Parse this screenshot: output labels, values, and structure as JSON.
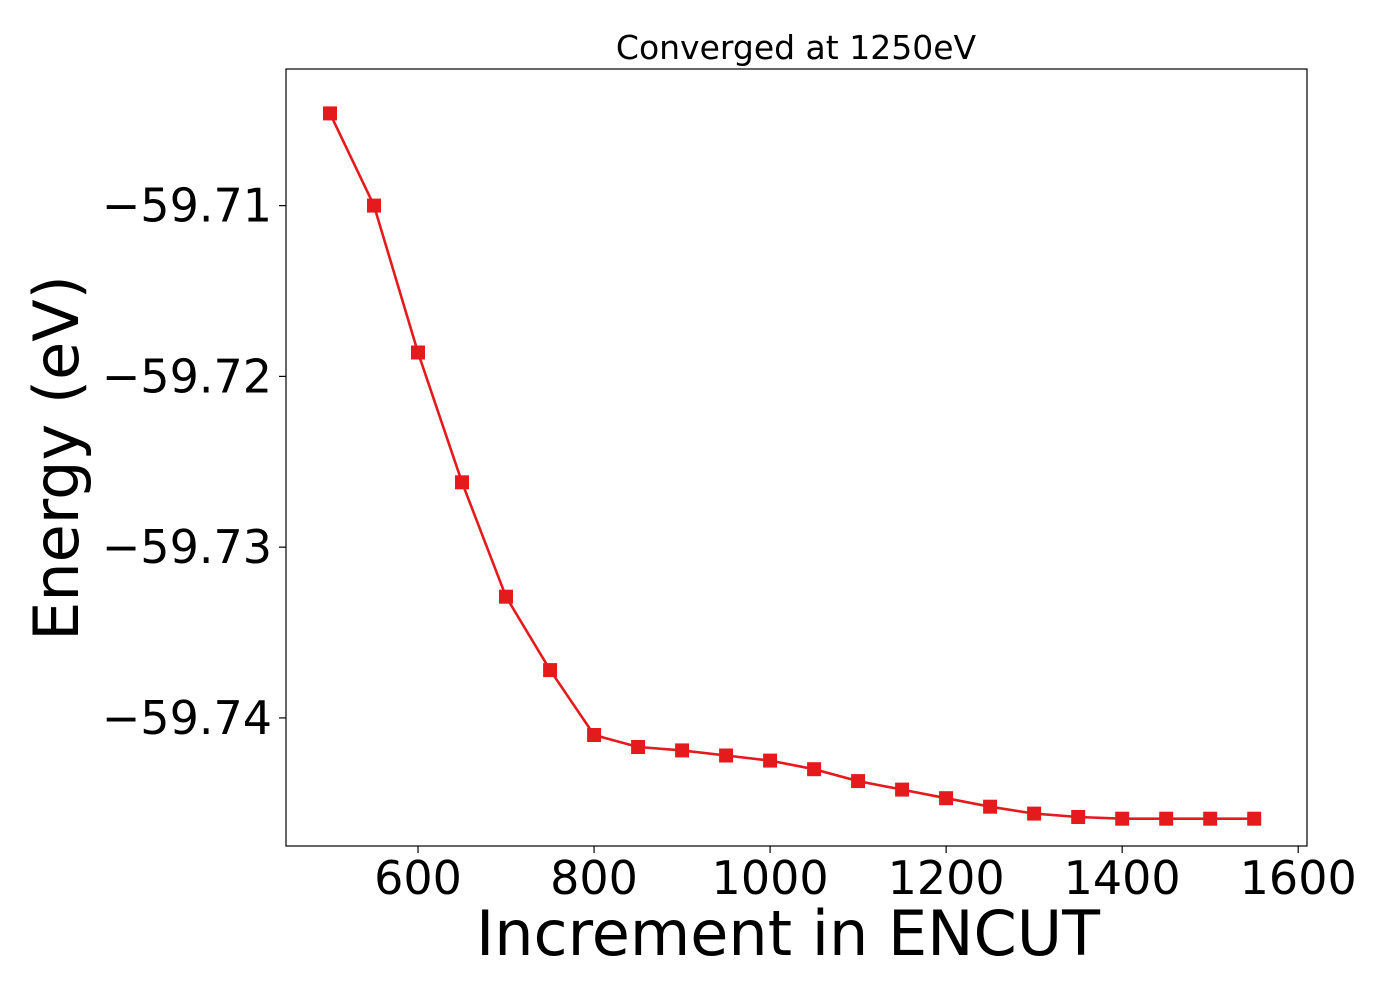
{
  "chart_data": {
    "type": "line",
    "title": "Converged at 1250eV",
    "xlabel": "Increment in ENCUT",
    "ylabel": "Energy (eV)",
    "xlim": [
      450,
      1610
    ],
    "ylim": [
      -59.7475,
      -59.702
    ],
    "xticks": [
      600,
      800,
      1000,
      1200,
      1400,
      1600
    ],
    "xtick_labels": [
      "600",
      "800",
      "1000",
      "1200",
      "1400",
      "1600"
    ],
    "yticks": [
      -59.71,
      -59.72,
      -59.73,
      -59.74
    ],
    "ytick_labels": [
      "−59.71",
      "−59.72",
      "−59.73",
      "−59.74"
    ],
    "grid": false,
    "legend": false,
    "series": [
      {
        "color": "#e41a1c",
        "marker": "square",
        "x": [
          500,
          550,
          600,
          650,
          700,
          750,
          800,
          850,
          900,
          950,
          1000,
          1050,
          1100,
          1150,
          1200,
          1250,
          1300,
          1350,
          1400,
          1450,
          1500,
          1550
        ],
        "y": [
          -59.7046,
          -59.71,
          -59.7186,
          -59.7262,
          -59.7329,
          -59.7372,
          -59.741,
          -59.7417,
          -59.7419,
          -59.7422,
          -59.7425,
          -59.743,
          -59.7437,
          -59.7442,
          -59.7447,
          -59.7452,
          -59.7456,
          -59.7458,
          -59.7459,
          -59.7459,
          -59.7459,
          -59.7459
        ]
      }
    ]
  }
}
